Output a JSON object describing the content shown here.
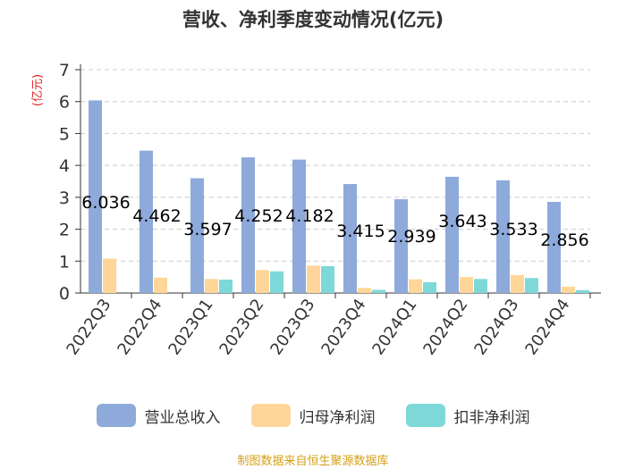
{
  "title": "营收、净利季度变动情况(亿元)",
  "chart_data": {
    "type": "bar",
    "title": "营收、净利季度变动情况(亿元)",
    "ylabel": "(亿元)",
    "ylim": [
      0,
      7
    ],
    "yticks": [
      0,
      1,
      2,
      3,
      4,
      5,
      6,
      7
    ],
    "grid": true,
    "legend_position": "bottom",
    "categories": [
      "2022Q3",
      "2022Q4",
      "2023Q1",
      "2023Q2",
      "2023Q3",
      "2023Q4",
      "2024Q1",
      "2024Q2",
      "2024Q3",
      "2024Q4"
    ],
    "series": [
      {
        "name": "营业总收入",
        "color": "#8eaadb",
        "values": [
          6.036,
          4.462,
          3.597,
          4.252,
          4.182,
          3.415,
          2.939,
          3.643,
          3.533,
          2.856
        ]
      },
      {
        "name": "归母净利润",
        "color": "#ffd699",
        "values": [
          1.08,
          0.48,
          0.44,
          0.72,
          0.86,
          0.16,
          0.43,
          0.5,
          0.56,
          0.2
        ]
      },
      {
        "name": "扣非净利润",
        "color": "#7fd8d8",
        "values": [
          0.0,
          0.0,
          0.42,
          0.68,
          0.84,
          0.1,
          0.34,
          0.44,
          0.47,
          0.09
        ]
      }
    ],
    "data_labels": [
      "6.036",
      "4.462",
      "3.597",
      "4.252",
      "4.182",
      "3.415",
      "2.939",
      "3.643",
      "3.533",
      "2.856"
    ]
  },
  "footer": {
    "source": "制图数据来自恒生聚源数据库"
  }
}
